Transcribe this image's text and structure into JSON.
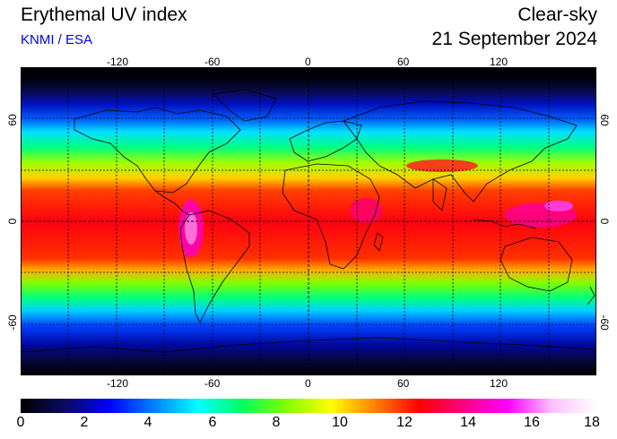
{
  "header": {
    "title": "Erythemal UV index",
    "subtitle": "KNMI / ESA",
    "right_line1": "Clear-sky",
    "right_line2": "21 September 2024"
  },
  "map": {
    "longitude_ticks": [
      "-120",
      "-60",
      "0",
      "60",
      "120"
    ],
    "latitude_ticks": [
      "60",
      "0",
      "-60"
    ]
  },
  "colorbar": {
    "labels": [
      "0",
      "2",
      "4",
      "6",
      "8",
      "10",
      "12",
      "14",
      "16",
      "18"
    ],
    "stops": [
      "#000000",
      "#0a0a60",
      "#0000ff",
      "#0080ff",
      "#00ffff",
      "#00ff60",
      "#80ff00",
      "#ffff00",
      "#ff8000",
      "#ff0000",
      "#ff0080",
      "#ff00ff",
      "#ffc0ff",
      "#ffffff"
    ]
  }
}
